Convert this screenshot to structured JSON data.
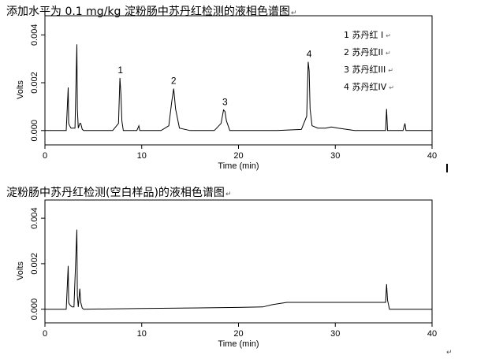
{
  "return_mark": "↵",
  "chart_data": [
    {
      "type": "line",
      "title": "添加水平为 0.1 mg/kg 淀粉肠中苏丹红检测的液相色谱图",
      "xlabel": "Time (min)",
      "ylabel": "Volts",
      "xlim": [
        0,
        40
      ],
      "ylim": [
        -0.0006,
        0.0048
      ],
      "x_ticks": [
        "0",
        "10",
        "20",
        "30",
        "40"
      ],
      "y_ticks": [
        "0.000",
        "0.002",
        "0.004"
      ],
      "legend_position": "top-right",
      "legend": [
        "1 苏丹红 I",
        "2 苏丹红II",
        "3 苏丹红III",
        "4 苏丹红IV"
      ],
      "peak_labels": [
        {
          "label": "1",
          "x": 7.8,
          "y": 0.0022
        },
        {
          "label": "2",
          "x": 13.3,
          "y": 0.00175
        },
        {
          "label": "3",
          "x": 18.6,
          "y": 0.00086
        },
        {
          "label": "4",
          "x": 27.3,
          "y": 0.00287
        }
      ],
      "series": [
        {
          "x": [
            0,
            2.2,
            2.4,
            2.45,
            2.55,
            2.7,
            2.9,
            3.1,
            3.3,
            3.35,
            3.45,
            3.6,
            3.7,
            3.85,
            4.0,
            5.0,
            7.0,
            7.6,
            7.75,
            7.85,
            7.95,
            8.1,
            8.5,
            9.5,
            9.7,
            9.8,
            10.0,
            12.0,
            12.8,
            13.1,
            13.3,
            13.5,
            13.9,
            15.0,
            17.5,
            18.2,
            18.45,
            18.6,
            18.75,
            19.1,
            20.0,
            24.0,
            26.5,
            27.05,
            27.2,
            27.3,
            27.4,
            27.6,
            28.2,
            29.0,
            29.6,
            30.3,
            32.0,
            35.2,
            35.3,
            35.4,
            35.5,
            37.0,
            37.2,
            37.3,
            37.4,
            40.0
          ],
          "y": [
            0.0,
            0.0,
            0.0018,
            0.0003,
            0.0002,
            0.0001,
            0.0001,
            0.0001,
            0.0036,
            0.0009,
            0.0001,
            0.0003,
            0.0003,
            5e-05,
            0.0,
            0.0,
            0.0,
            0.0003,
            0.0022,
            0.0015,
            0.0004,
            0.0,
            0.0,
            0.0,
            0.0002,
            0.0,
            0.0,
            0.0,
            0.0002,
            0.0012,
            0.00175,
            0.0009,
            0.0001,
            0.0,
            0.0,
            0.0003,
            0.00086,
            0.0008,
            0.0004,
            0.0,
            0.0,
            0.0,
            5e-05,
            0.0006,
            0.00287,
            0.0025,
            0.0009,
            0.0002,
            0.0001,
            0.0001,
            0.00015,
            0.0001,
            0.0,
            0.0,
            0.0009,
            0.0,
            0.0,
            0.0,
            0.0003,
            0.0,
            0.0,
            0.0
          ]
        }
      ]
    },
    {
      "type": "line",
      "title": "淀粉肠中苏丹红检测(空白样品)的液相色谱图",
      "xlabel": "Time (min)",
      "ylabel": "Volts",
      "xlim": [
        0,
        40
      ],
      "ylim": [
        -0.0006,
        0.0048
      ],
      "x_ticks": [
        "0",
        "10",
        "20",
        "30",
        "40"
      ],
      "y_ticks": [
        "0.000",
        "0.002",
        "0.004"
      ],
      "series": [
        {
          "x": [
            0,
            2.2,
            2.4,
            2.45,
            2.55,
            2.8,
            3.0,
            3.3,
            3.35,
            3.45,
            3.6,
            3.7,
            3.85,
            4.0,
            10.0,
            20.0,
            22.5,
            23.5,
            25.0,
            30.0,
            35.2,
            35.3,
            35.4,
            35.6,
            40.0
          ],
          "y": [
            0.0,
            0.0,
            0.0019,
            0.0003,
            0.0002,
            0.0001,
            0.0001,
            0.0035,
            0.0006,
            0.0001,
            0.0009,
            0.0003,
            5e-05,
            0.0,
            3e-05,
            8e-05,
            0.0001,
            0.0002,
            0.0003,
            0.0003,
            0.0003,
            0.0011,
            0.0004,
            0.0,
            0.0
          ]
        }
      ]
    }
  ]
}
